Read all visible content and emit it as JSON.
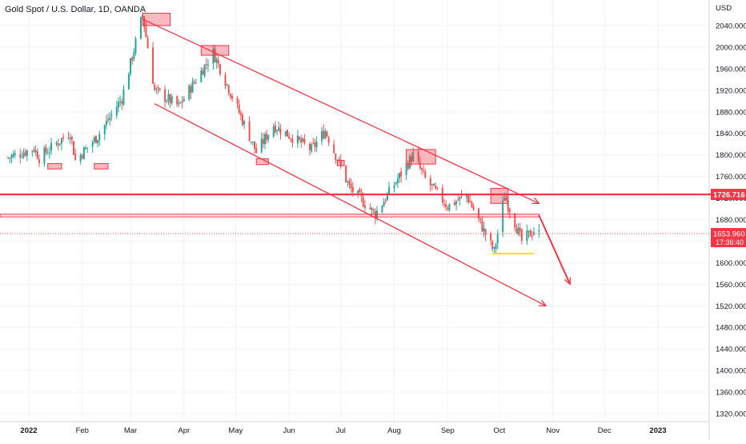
{
  "chart_data": {
    "type": "candlestick",
    "title": "Gold Spot / U.S. Dollar, 1D, OANDA",
    "ylabel": "USD",
    "ylim": [
      1305,
      2070
    ],
    "xlim": [
      "2021-12-20",
      "2023-02-15"
    ],
    "y_ticks": [
      "1320.000",
      "1360.000",
      "1400.000",
      "1440.000",
      "1480.000",
      "1520.000",
      "1560.000",
      "1600.000",
      "1640.000",
      "1680.000",
      "1720.000",
      "1760.000",
      "1800.000",
      "1840.000",
      "1880.000",
      "1920.000",
      "1960.000",
      "2000.000",
      "2040.000"
    ],
    "x_ticks": [
      {
        "label": "2022",
        "date": "2022-01-01"
      },
      {
        "label": "Feb",
        "date": "2022-02-01"
      },
      {
        "label": "Mar",
        "date": "2022-03-01"
      },
      {
        "label": "Apr",
        "date": "2022-04-01"
      },
      {
        "label": "May",
        "date": "2022-05-01"
      },
      {
        "label": "Jun",
        "date": "2022-06-01"
      },
      {
        "label": "Jul",
        "date": "2022-07-01"
      },
      {
        "label": "Aug",
        "date": "2022-08-01"
      },
      {
        "label": "Sep",
        "date": "2022-09-01"
      },
      {
        "label": "Oct",
        "date": "2022-10-01"
      },
      {
        "label": "Nov",
        "date": "2022-11-01"
      },
      {
        "label": "Dec",
        "date": "2022-12-01"
      },
      {
        "label": "2023",
        "date": "2023-01-01"
      }
    ],
    "path": [
      [
        "2021-12-20",
        1795
      ],
      [
        "2022-01-04",
        1812
      ],
      [
        "2022-01-07",
        1795
      ],
      [
        "2022-01-25",
        1842
      ],
      [
        "2022-01-28",
        1790
      ],
      [
        "2022-02-10",
        1835
      ],
      [
        "2022-02-24",
        1905
      ],
      [
        "2022-03-08",
        2060
      ],
      [
        "2022-03-15",
        1920
      ],
      [
        "2022-03-29",
        1890
      ],
      [
        "2022-04-18",
        1990
      ],
      [
        "2022-05-13",
        1805
      ],
      [
        "2022-05-23",
        1855
      ],
      [
        "2022-06-14",
        1810
      ],
      [
        "2022-06-22",
        1845
      ],
      [
        "2022-07-06",
        1740
      ],
      [
        "2022-07-21",
        1690
      ],
      [
        "2022-08-12",
        1800
      ],
      [
        "2022-08-19",
        1755
      ],
      [
        "2022-09-01",
        1705
      ],
      [
        "2022-09-12",
        1725
      ],
      [
        "2022-09-28",
        1620
      ],
      [
        "2022-10-04",
        1725
      ],
      [
        "2022-10-14",
        1640
      ],
      [
        "2022-10-21",
        1660
      ],
      [
        "2022-10-24",
        1654
      ]
    ],
    "price_levels": [
      {
        "price": 1726.716,
        "label": "1726.716",
        "color": "#f23645"
      },
      {
        "price": 1653.96,
        "label": "1653.960",
        "countdown": "17:36:40",
        "color": "#f23645"
      }
    ],
    "grid": true,
    "colors": {
      "up": "#26a69a",
      "down": "#ef5350",
      "annotation": "#f23645",
      "highlight": "#f5e01f"
    },
    "annotations": {
      "channel_upper": [
        [
          "2022-03-08",
          2052
        ],
        [
          "2022-10-24",
          1710
        ]
      ],
      "channel_lower": [
        [
          "2022-03-15",
          1895
        ],
        [
          "2022-10-28",
          1520
        ]
      ],
      "resistance_band": [
        1685,
        1690
      ],
      "support_highlight": {
        "from": "2022-09-27",
        "to": "2022-10-21",
        "price": 1617
      },
      "projection": [
        [
          "2022-10-24",
          1688
        ],
        [
          "2022-11-11",
          1560
        ]
      ],
      "boxes": [
        {
          "from": "2022-03-08",
          "to": "2022-03-24",
          "low": 2040,
          "high": 2063
        },
        {
          "from": "2022-04-11",
          "to": "2022-04-27",
          "low": 1985,
          "high": 2003
        },
        {
          "from": "2022-01-12",
          "to": "2022-01-20",
          "low": 1774,
          "high": 1784
        },
        {
          "from": "2022-02-08",
          "to": "2022-02-16",
          "low": 1774,
          "high": 1784
        },
        {
          "from": "2022-05-13",
          "to": "2022-05-20",
          "low": 1782,
          "high": 1793
        },
        {
          "from": "2022-06-29",
          "to": "2022-07-03",
          "low": 1780,
          "high": 1790
        },
        {
          "from": "2022-08-08",
          "to": "2022-08-25",
          "low": 1783,
          "high": 1810
        },
        {
          "from": "2022-09-26",
          "to": "2022-10-06",
          "low": 1710,
          "high": 1738
        }
      ]
    }
  }
}
